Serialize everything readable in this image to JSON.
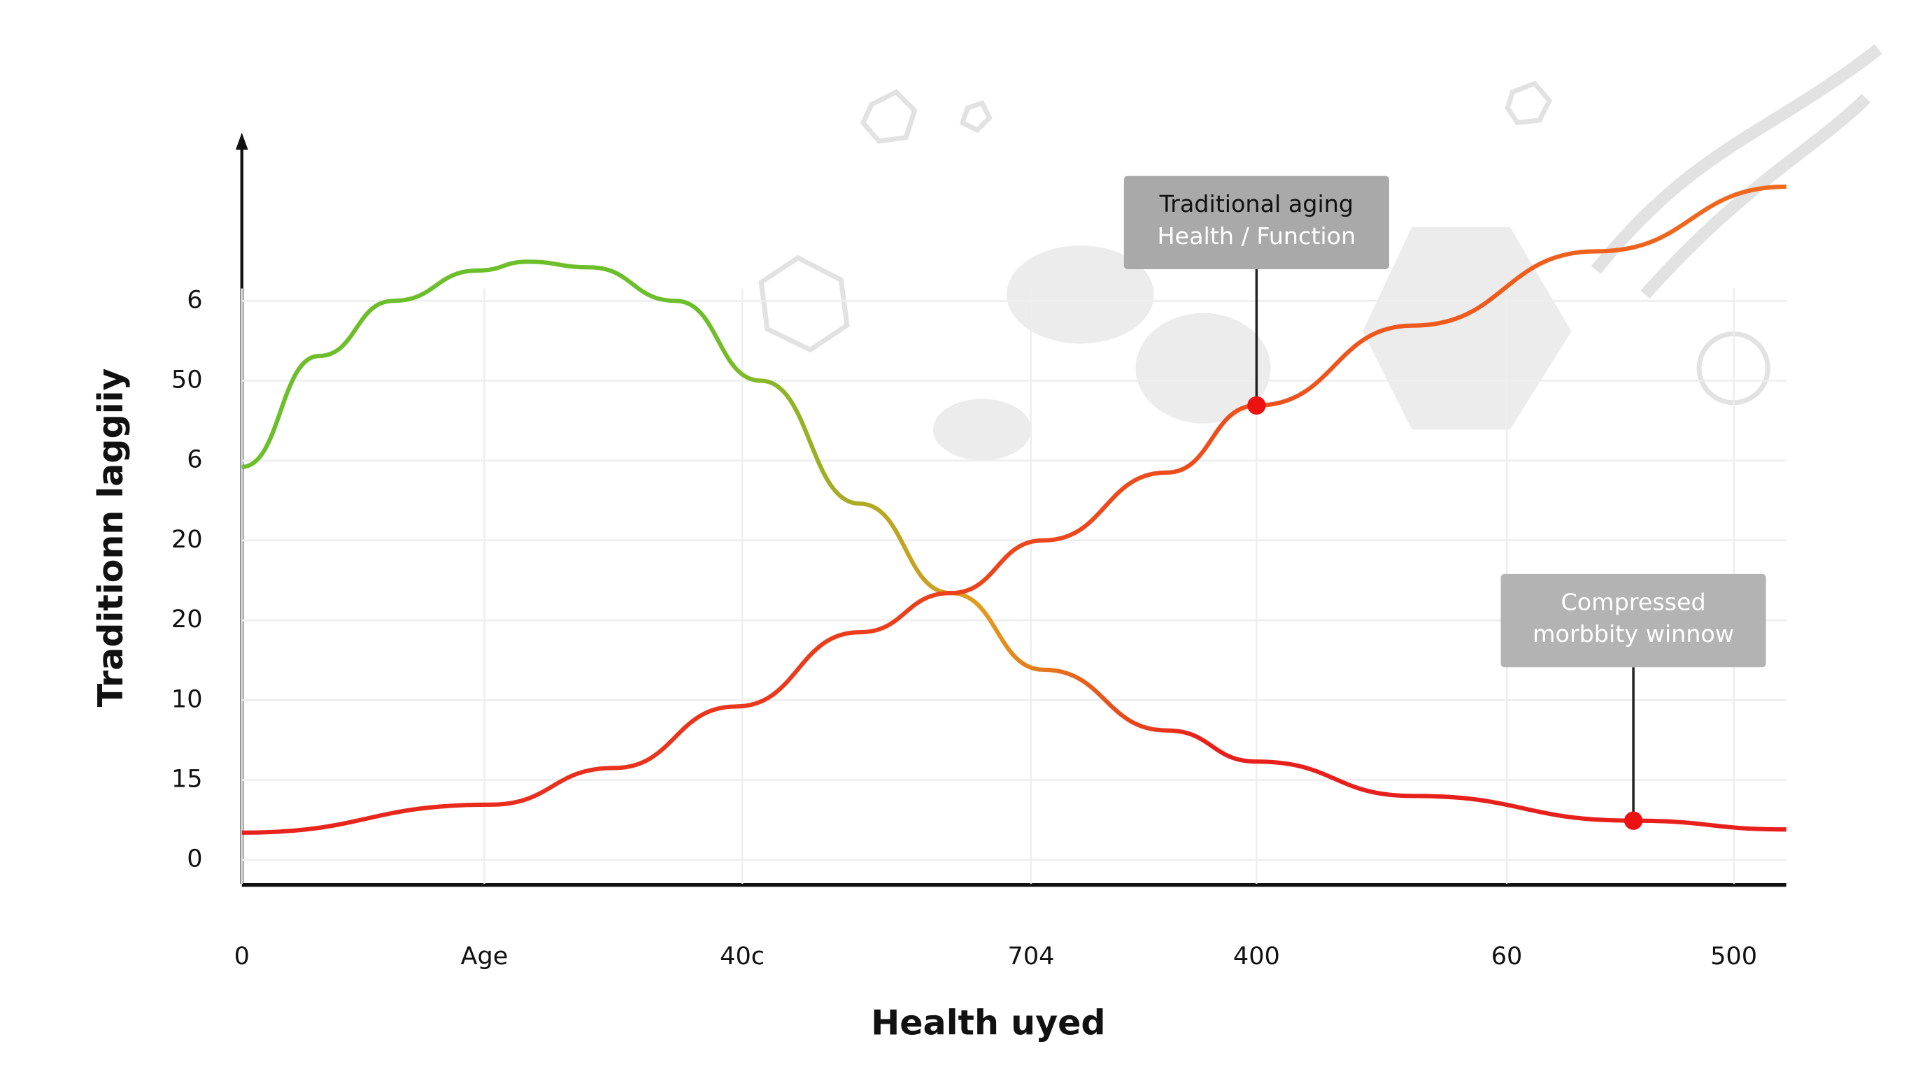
{
  "chart_data": {
    "type": "line",
    "y_label": "Traditionn laggiiy",
    "x_label": "Health uyed",
    "xlim": [
      0,
      100
    ],
    "ylim": [
      -0.3,
      9
    ],
    "xticks": [
      0,
      {
        "value": 15.7,
        "label": "Age"
      },
      {
        "value": 32.4,
        "label": "40c"
      },
      {
        "value": 51.1,
        "label": "704"
      },
      {
        "value": 65.7,
        "label": "400"
      },
      {
        "value": 81.9,
        "label": "60"
      },
      {
        "value": 96.6,
        "label": "500"
      }
    ],
    "yticks": [
      {
        "value": 0,
        "label": "0"
      },
      {
        "value": 1,
        "label": "15"
      },
      {
        "value": 2,
        "label": "10"
      },
      {
        "value": 3,
        "label": "20"
      },
      {
        "value": 4,
        "label": "20"
      },
      {
        "value": 5,
        "label": "6"
      },
      {
        "value": 6,
        "label": "50"
      },
      {
        "value": 7,
        "label": "6"
      }
    ],
    "grid": true,
    "series": [
      {
        "colors": [
          "#6cbf2a",
          "#e39a1e",
          "#e8201c"
        ],
        "x": [
          0,
          5,
          9.8,
          15.3,
          18.5,
          22.5,
          28.1,
          33.6,
          40,
          45.9,
          51.9,
          59.9,
          65.7,
          75.8,
          90.1,
          100
        ],
        "values": [
          4.92,
          6.31,
          7.0,
          7.38,
          7.49,
          7.42,
          7.0,
          6.0,
          4.46,
          3.34,
          2.38,
          1.62,
          1.23,
          0.8,
          0.49,
          0.38
        ]
      },
      {
        "colors": [
          "#e8201c",
          "#f06a1c"
        ],
        "x": [
          0,
          16.1,
          24.1,
          32,
          40,
          45.9,
          51.9,
          59.9,
          65.7,
          75.8,
          87.7,
          100
        ],
        "values": [
          0.34,
          0.69,
          1.15,
          1.92,
          2.85,
          3.34,
          4.0,
          4.85,
          5.69,
          6.69,
          7.62,
          8.43
        ]
      }
    ],
    "annotations": [
      {
        "text": [
          "Traditional aging",
          "Health / Function"
        ],
        "x": 65.7,
        "y": 5.69,
        "color": "#ee1111"
      },
      {
        "text": [
          "Compressed",
          "morbbity winnow"
        ],
        "x": 90.1,
        "y": 0.49,
        "color": "#ee1111"
      }
    ]
  }
}
